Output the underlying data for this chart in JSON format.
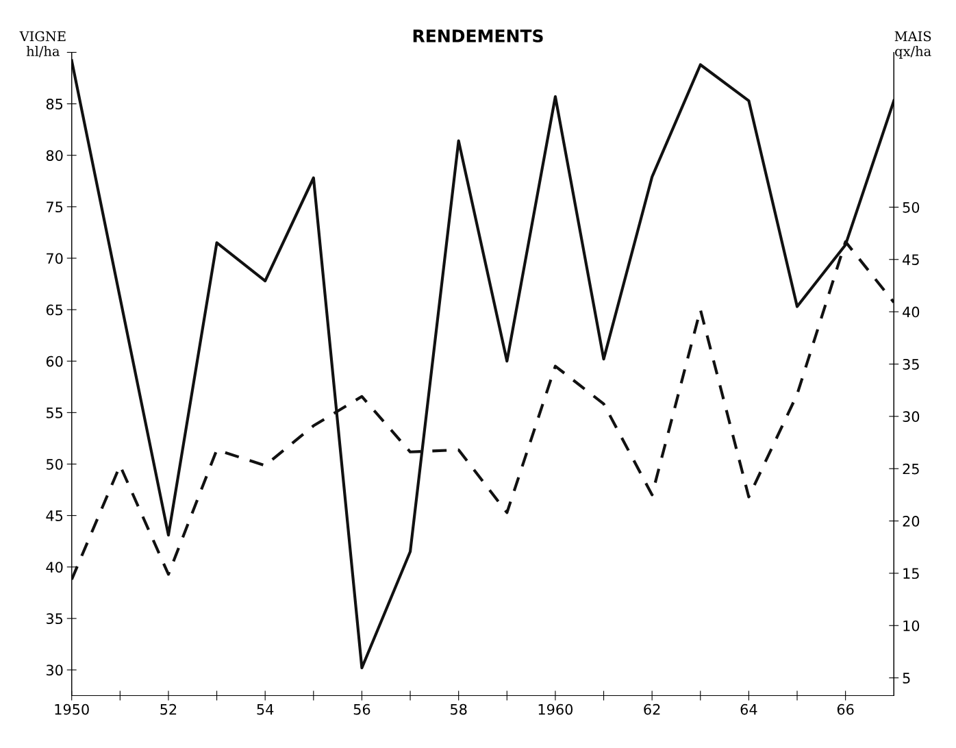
{
  "chart_data": {
    "type": "line",
    "title": "RENDEMENTS",
    "ylabel": "VIGNE\nhl/ha",
    "y2label": "MAIS\nqx/ha",
    "xlim": [
      1950,
      1967
    ],
    "xticks": [
      {
        "value": 1950,
        "label": "1950"
      },
      {
        "value": 1951,
        "label": null
      },
      {
        "value": 1952,
        "label": "52"
      },
      {
        "value": 1953,
        "label": null
      },
      {
        "value": 1954,
        "label": "54"
      },
      {
        "value": 1955,
        "label": null
      },
      {
        "value": 1956,
        "label": "56"
      },
      {
        "value": 1957,
        "label": null
      },
      {
        "value": 1958,
        "label": "58"
      },
      {
        "value": 1959,
        "label": null
      },
      {
        "value": 1960,
        "label": "1960"
      },
      {
        "value": 1961,
        "label": null
      },
      {
        "value": 1962,
        "label": "62"
      },
      {
        "value": 1963,
        "label": null
      },
      {
        "value": 1964,
        "label": "64"
      },
      {
        "value": 1965,
        "label": null
      },
      {
        "value": 1966,
        "label": "66"
      }
    ],
    "ylim": [
      27.5,
      90
    ],
    "yticks": [
      30,
      35,
      40,
      45,
      50,
      55,
      60,
      65,
      70,
      75,
      80,
      85,
      {
        "value": 90,
        "label": null
      }
    ],
    "y2lim": [
      3.3,
      64.8
    ],
    "y2ticks": [
      5,
      10,
      15,
      20,
      25,
      30,
      35,
      40,
      45,
      50
    ],
    "marker": "none",
    "series": [
      {
        "color": "#111111",
        "line_style": "solid",
        "x": [
          1950,
          1952,
          1953,
          1954,
          1955,
          1956,
          1957,
          1958,
          1959,
          1960,
          1961,
          1962,
          1963,
          1964,
          1965,
          1966,
          1967
        ],
        "values": [
          89.2,
          43.1,
          71.5,
          67.8,
          77.8,
          30.2,
          41.5,
          81.4,
          60.0,
          85.7,
          60.2,
          77.9,
          88.8,
          85.3,
          65.3,
          71.3,
          85.3
        ]
      },
      {
        "color": "#111111",
        "line_style": "dashed",
        "axis": "y2",
        "x": [
          1950,
          1951,
          1952,
          1953,
          1954,
          1955,
          1956,
          1957,
          1958,
          1959,
          1960,
          1961,
          1962,
          1963,
          1964,
          1965,
          1966,
          1967
        ],
        "values": [
          14.4,
          25.3,
          14.9,
          26.8,
          25.3,
          29.1,
          31.9,
          26.6,
          26.8,
          20.8,
          34.8,
          31.2,
          22.5,
          40.2,
          22.3,
          32.1,
          46.7,
          40.9
        ]
      }
    ]
  }
}
